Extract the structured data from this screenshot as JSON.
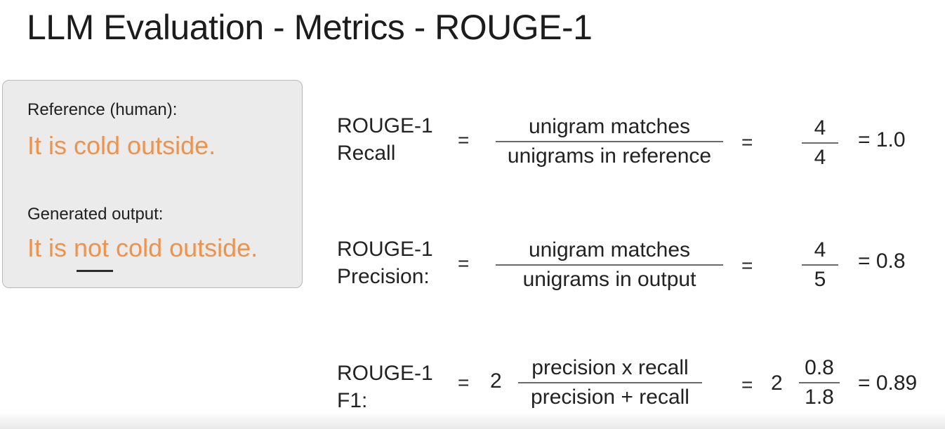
{
  "title": "LLM Evaluation - Metrics - ROUGE-1",
  "example": {
    "reference_label": "Reference (human):",
    "reference_text": "It is cold outside.",
    "generated_label": "Generated output:",
    "generated_text": "It is not cold outside."
  },
  "formulas": {
    "recall": {
      "name_line1": "ROUGE-1",
      "name_line2": "Recall",
      "eq1": "=",
      "numerator": "unigram matches",
      "denominator": "unigrams in reference",
      "eq2": "=",
      "value_num": "4",
      "value_den": "4",
      "result": "= 1.0"
    },
    "precision": {
      "name_line1": "ROUGE-1",
      "name_line2": "Precision:",
      "eq1": "=",
      "numerator": "unigram matches",
      "denominator": "unigrams in output",
      "eq2": "=",
      "value_num": "4",
      "value_den": "5",
      "result": "= 0.8"
    },
    "f1": {
      "name_line1": "ROUGE-1",
      "name_line2": "F1:",
      "eq1": "=",
      "coef1": "2",
      "numerator": "precision x recall",
      "denominator": "precision + recall",
      "eq2": "=",
      "coef2": "2",
      "value_num": "0.8",
      "value_den": "1.8",
      "result": "= 0.89"
    }
  },
  "colors": {
    "accent_orange": "#f0924a",
    "box_background": "#ebebeb"
  }
}
